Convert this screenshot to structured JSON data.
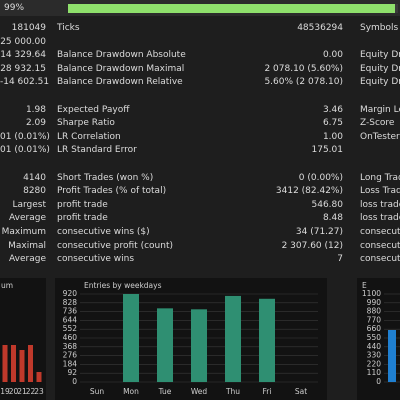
{
  "progress": {
    "value": 99,
    "label": "99%"
  },
  "rows": [
    [
      "181049",
      "Ticks",
      "48536294",
      "Symbols"
    ],
    [
      "25 000.00",
      null,
      null,
      null
    ],
    [
      "14 329.64",
      "Balance Drawdown Absolute",
      "0.00",
      "Equity Draw"
    ],
    [
      "28 932.15",
      "Balance Drawdown Maximal",
      "2 078.10 (5.60%)",
      "Equity Draw"
    ],
    [
      "-14 602.51",
      "Balance Drawdown Relative",
      "5.60% (2 078.10)",
      "Equity Draw"
    ],
    null,
    [
      "1.98",
      "Expected Payoff",
      "3.46",
      "Margin Lev"
    ],
    [
      "2.09",
      "Sharpe Ratio",
      "6.75",
      "Z-Score"
    ],
    [
      "01 (0.01%)",
      "LR Correlation",
      "1.00",
      "OnTester re"
    ],
    [
      "01 (0.01%)",
      "LR Standard Error",
      "175.01",
      null
    ],
    null,
    [
      "4140",
      "Short Trades (won %)",
      "0 (0.00%)",
      "Long Trade"
    ],
    [
      "8280",
      "Profit Trades (% of total)",
      "3412 (82.42%)",
      "Loss Trade"
    ],
    [
      "Largest",
      "profit trade",
      "546.80",
      "loss trade"
    ],
    [
      "Average",
      "profit trade",
      "8.48",
      "loss trade"
    ],
    [
      "Maximum",
      "consecutive wins ($)",
      "34 (71.27)",
      "consecutive"
    ],
    [
      "Maximal",
      "consecutive profit (count)",
      "2 307.60 (12)",
      "consecutive"
    ],
    [
      "Average",
      "consecutive wins",
      "7",
      "consecutive"
    ]
  ],
  "hours_chart": {
    "title": "um",
    "categories": [
      "19",
      "20",
      "21",
      "22",
      "23"
    ],
    "values": [
      37,
      37,
      32,
      37,
      10
    ],
    "color": "#c0392b"
  },
  "weekday_chart": {
    "title": "Entries by weekdays",
    "categories": [
      "Sun",
      "Mon",
      "Tue",
      "Wed",
      "Thu",
      "Fri",
      "Sat"
    ],
    "values": [
      0,
      920,
      770,
      760,
      900,
      870,
      0
    ],
    "color": "#2f8f72",
    "ylim": [
      0,
      920
    ],
    "yticks": [
      0,
      92,
      184,
      276,
      368,
      460,
      552,
      644,
      736,
      828,
      920
    ]
  },
  "month_chart": {
    "title": "E",
    "categories": [
      null
    ],
    "values": [
      650
    ],
    "color": "#1f7fd0",
    "ylim": [
      0,
      1100
    ],
    "yticks": [
      0,
      110,
      220,
      330,
      440,
      550,
      660,
      770,
      880,
      990,
      1100
    ]
  }
}
